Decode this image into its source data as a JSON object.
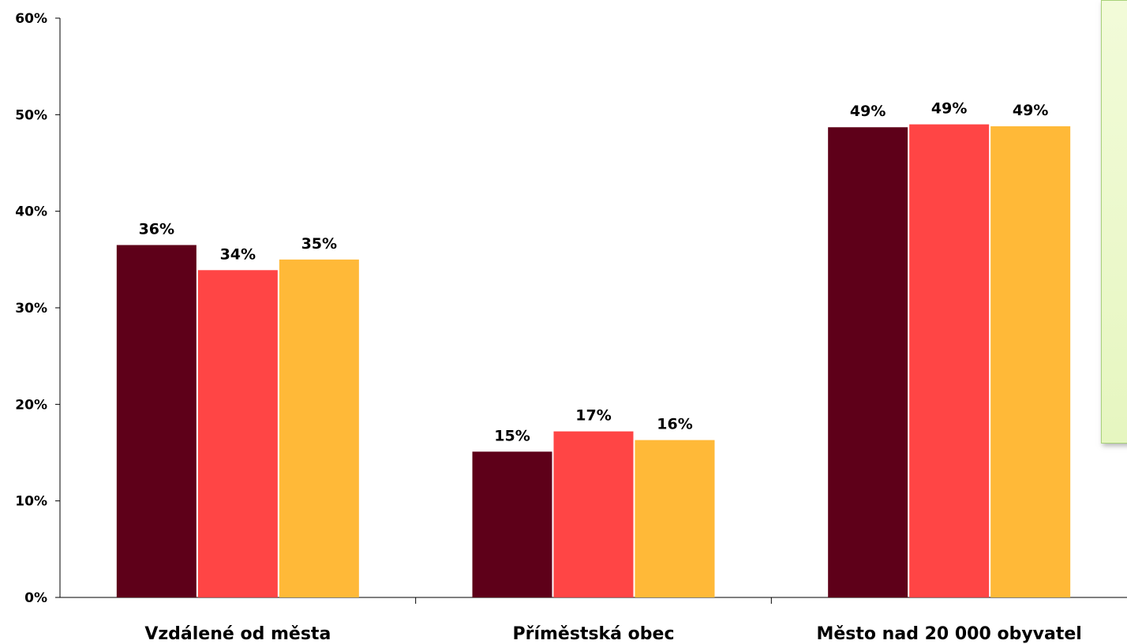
{
  "chart_data": {
    "type": "bar",
    "categories": [
      "Vzdálené od města",
      "Příměstská obec",
      "Město nad 20 000 obyvatel"
    ],
    "series": [
      {
        "values": [
          36.5,
          15.1,
          48.7
        ],
        "labels": [
          "36%",
          "15%",
          "49%"
        ],
        "color": "#5e0019"
      },
      {
        "values": [
          33.9,
          17.2,
          49.0
        ],
        "labels": [
          "34%",
          "17%",
          "49%"
        ],
        "color": "#ff4545"
      },
      {
        "values": [
          35.0,
          16.3,
          48.8
        ],
        "labels": [
          "35%",
          "16%",
          "49%"
        ],
        "color": "#ffb938"
      }
    ],
    "yticks": [
      "0%",
      "10%",
      "20%",
      "30%",
      "40%",
      "50%",
      "60%"
    ],
    "ylim": [
      0,
      60
    ],
    "grid": false
  }
}
